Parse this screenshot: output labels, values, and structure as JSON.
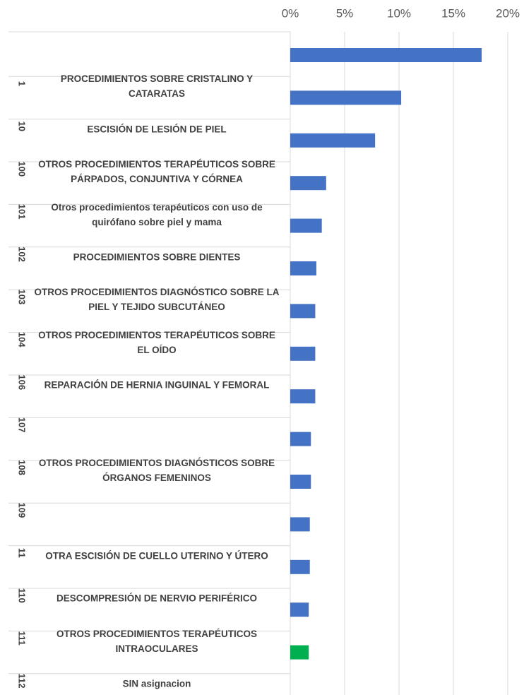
{
  "chart_data": {
    "type": "bar",
    "orientation": "horizontal",
    "codes": [
      null,
      "1",
      "10",
      "100",
      "101",
      "102",
      "103",
      "104",
      "106",
      "107",
      "108",
      "109",
      "11",
      "110",
      "111",
      "112"
    ],
    "categories": [
      null,
      "PROCEDIMIENTOS SOBRE CRISTALINO Y CATARATAS",
      "ESCISIÓN DE LESIÓN DE PIEL",
      "OTROS PROCEDIMIENTOS TERAPÉUTICOS SOBRE PÁRPADOS, CONJUNTIVA Y CÓRNEA",
      "Otros procedimientos terapéuticos con uso de quirófano sobre piel y mama",
      "PROCEDIMIENTOS SOBRE DIENTES",
      "OTROS PROCEDIMIENTOS DIAGNÓSTICO SOBRE LA PIEL Y TEJIDO SUBCUTÁNEO",
      "OTROS PROCEDIMIENTOS TERAPÉUTICOS SOBRE EL OÍDO",
      "REPARACIÓN DE HERNIA INGUINAL Y FEMORAL",
      null,
      "OTROS PROCEDIMIENTOS DIAGNÓSTICOS SOBRE ÓRGANOS FEMENINOS",
      null,
      "OTRA ESCISIÓN DE CUELLO UTERINO Y ÚTERO",
      "DESCOMPRESIÓN DE NERVIO PERIFÉRICO",
      "OTROS PROCEDIMIENTOS TERAPÉUTICOS INTRAOCULARES",
      "SIN asignacion"
    ],
    "values": [
      17.6,
      10.2,
      7.8,
      3.3,
      2.9,
      2.4,
      2.3,
      2.3,
      2.3,
      1.9,
      1.9,
      1.8,
      1.8,
      1.7,
      1.7,
      null
    ],
    "colors": [
      "#4472c4",
      "#4472c4",
      "#4472c4",
      "#4472c4",
      "#4472c4",
      "#4472c4",
      "#4472c4",
      "#4472c4",
      "#4472c4",
      "#4472c4",
      "#4472c4",
      "#4472c4",
      "#4472c4",
      "#4472c4",
      "#00b050",
      null
    ],
    "xlim": [
      0,
      20
    ],
    "xticks": [
      {
        "value": 0,
        "label": "0%"
      },
      {
        "value": 5,
        "label": "5%"
      },
      {
        "value": 10,
        "label": "10%"
      },
      {
        "value": 15,
        "label": "15%"
      },
      {
        "value": 20,
        "label": "20%"
      }
    ],
    "grid": true
  }
}
